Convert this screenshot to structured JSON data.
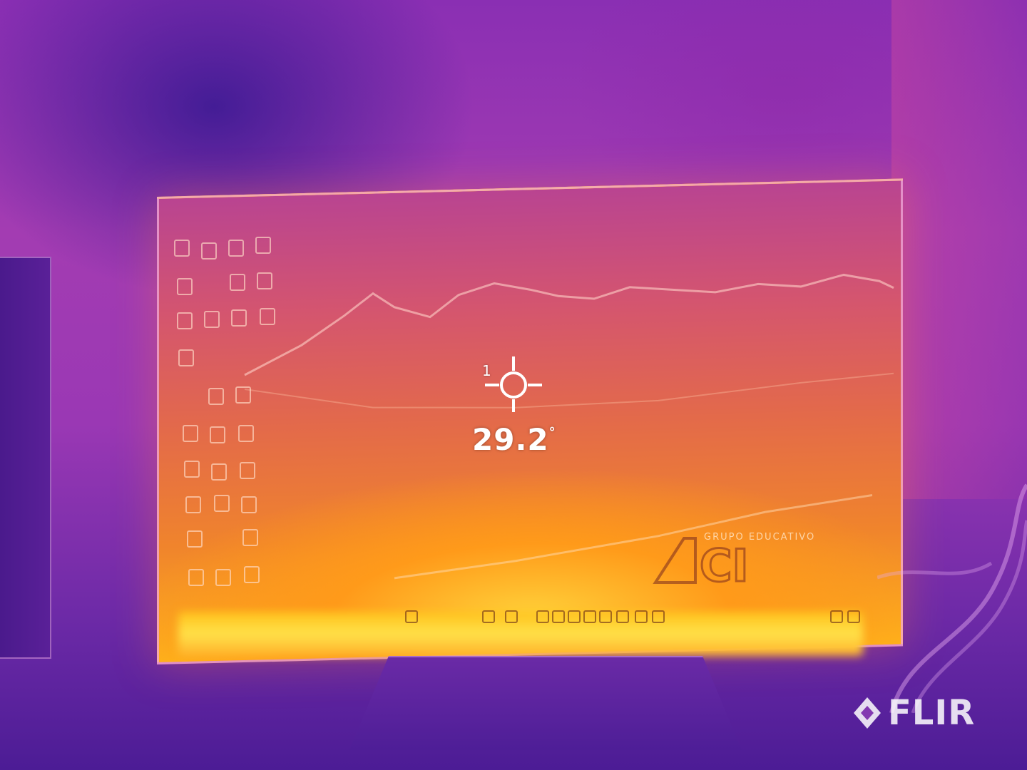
{
  "measurement": {
    "spot_index": "1",
    "temperature": "29.2",
    "unit": "°"
  },
  "brand": {
    "name": "FLIR"
  },
  "screen_logo": {
    "text": "CI",
    "tagline": "GRUPO EDUCATIVO"
  },
  "colors": {
    "palette": "iron",
    "hot": "#ffe24a",
    "warm": "#f0842c",
    "cool": "#5b1f9e",
    "overlay": "#ffffff"
  },
  "icons": {
    "spot_marker": "crosshair-icon",
    "brand_mark": "diamond-logo-icon"
  }
}
